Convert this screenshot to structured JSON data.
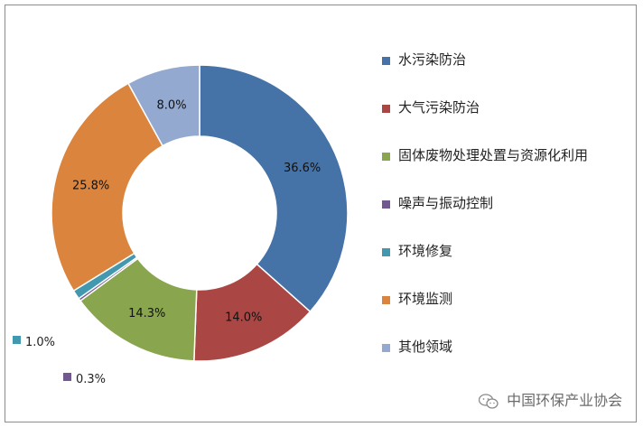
{
  "chart_data": {
    "type": "pie",
    "donut": true,
    "title": "",
    "categories": [
      "水污染防治",
      "大气污染防治",
      "固体废物处理处置与资源化利用",
      "噪声与振动控制",
      "环境修复",
      "环境监测",
      "其他领域"
    ],
    "values": [
      36.6,
      14.0,
      14.3,
      0.3,
      1.0,
      25.8,
      8.0
    ],
    "labels": [
      "36.6%",
      "14.0%",
      "14.3%",
      "0.3%",
      "1.0%",
      "25.8%",
      "8.0%"
    ],
    "colors": [
      "#4572A7",
      "#AA4643",
      "#89A54E",
      "#71588F",
      "#4198AF",
      "#DB843D",
      "#93A9CF"
    ],
    "legend_position": "right"
  },
  "watermark": {
    "text": "中国环保产业协会",
    "icon": "wechat-icon"
  }
}
